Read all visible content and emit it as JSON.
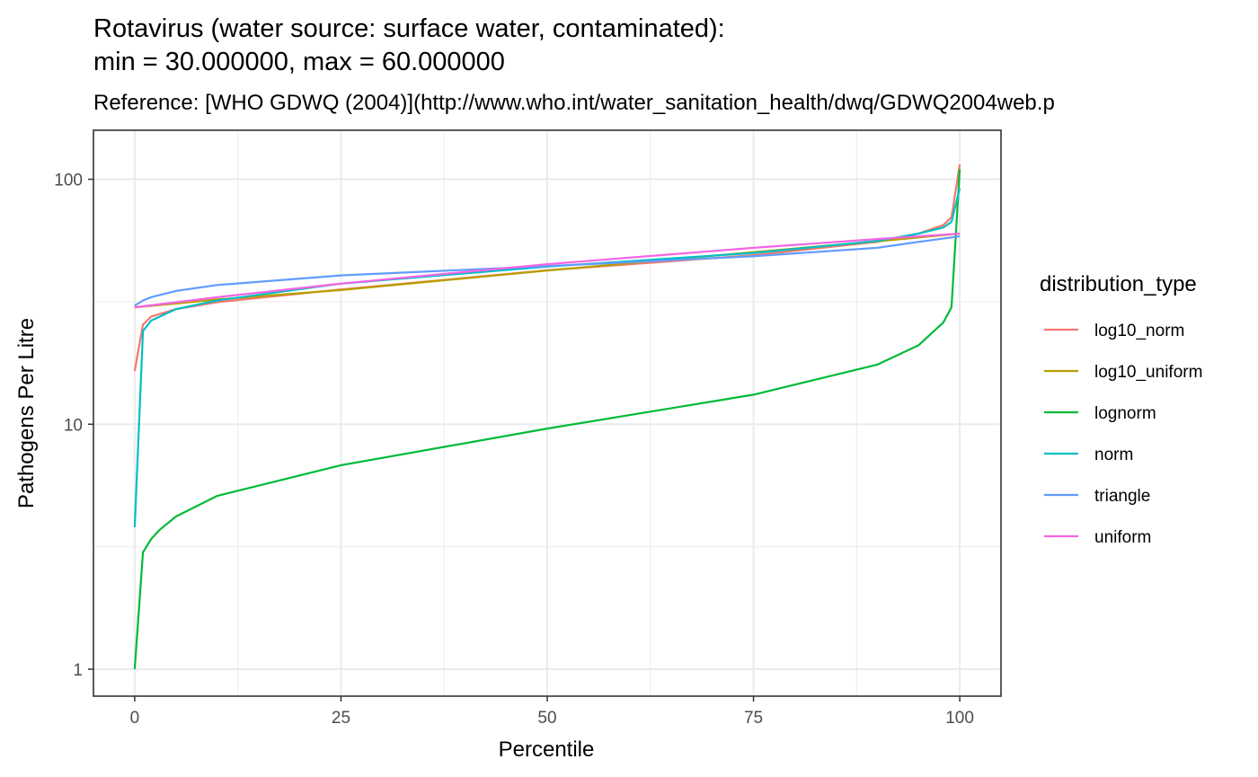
{
  "chart_data": {
    "type": "line",
    "title_line1": "Rotavirus (water source: surface water, contaminated):",
    "title_line2": "min = 30.000000, max = 60.000000",
    "subtitle": "Reference: [WHO GDWQ (2004)](http://www.who.int/water_sanitation_health/dwq/GDWQ2004web.p",
    "xlabel": "Percentile",
    "ylabel": "Pathogens Per Litre",
    "xlim": [
      -5,
      105
    ],
    "ylim_log10": [
      -0.11,
      2.2
    ],
    "y_scale": "log10",
    "x_ticks": [
      0,
      25,
      50,
      75,
      100
    ],
    "x_tick_labels": [
      "0",
      "25",
      "50",
      "75",
      "100"
    ],
    "y_ticks": [
      1,
      10,
      100
    ],
    "y_tick_labels": [
      "1",
      "10",
      "100"
    ],
    "grid": true,
    "legend_title": "distribution_type",
    "legend_position": "right",
    "series": [
      {
        "name": "log10_norm",
        "color": "#F8766D",
        "x": [
          0,
          1,
          2,
          5,
          10,
          25,
          50,
          75,
          90,
          95,
          98,
          99,
          100
        ],
        "y": [
          16.5,
          25.5,
          27.5,
          29.5,
          31.5,
          35.5,
          42.5,
          49.0,
          55.5,
          60.0,
          65.0,
          70.0,
          115
        ]
      },
      {
        "name": "log10_uniform",
        "color": "#B79F00",
        "x": [
          0,
          5,
          10,
          25,
          50,
          75,
          90,
          100
        ],
        "y": [
          30.0,
          31.1,
          32.3,
          35.3,
          42.4,
          50.4,
          55.8,
          60.0
        ]
      },
      {
        "name": "lognorm",
        "color": "#00BA38",
        "x": [
          0,
          1,
          2,
          3,
          5,
          10,
          25,
          50,
          75,
          90,
          95,
          98,
          99,
          100
        ],
        "y": [
          1.0,
          3.0,
          3.4,
          3.7,
          4.2,
          5.1,
          6.8,
          9.6,
          13.2,
          17.5,
          21.0,
          26.0,
          30.0,
          110
        ]
      },
      {
        "name": "norm",
        "color": "#00BFC4",
        "x": [
          0,
          1,
          2,
          5,
          10,
          25,
          50,
          75,
          90,
          95,
          98,
          99,
          100
        ],
        "y": [
          3.8,
          24.0,
          26.5,
          29.5,
          32.0,
          37.5,
          44.0,
          50.0,
          56.0,
          60.0,
          63.5,
          67.0,
          92.0
        ]
      },
      {
        "name": "triangle",
        "color": "#619CFF",
        "x": [
          0,
          1,
          2,
          5,
          10,
          25,
          50,
          75,
          90,
          95,
          100
        ],
        "y": [
          30.5,
          32.0,
          33.0,
          35.0,
          37.0,
          40.5,
          44.2,
          48.5,
          52.5,
          55.5,
          58.5
        ]
      },
      {
        "name": "uniform",
        "color": "#F564E3",
        "x": [
          0,
          10,
          25,
          50,
          75,
          90,
          100
        ],
        "y": [
          30.0,
          33.0,
          37.5,
          45.0,
          52.5,
          57.0,
          60.0
        ]
      }
    ]
  }
}
